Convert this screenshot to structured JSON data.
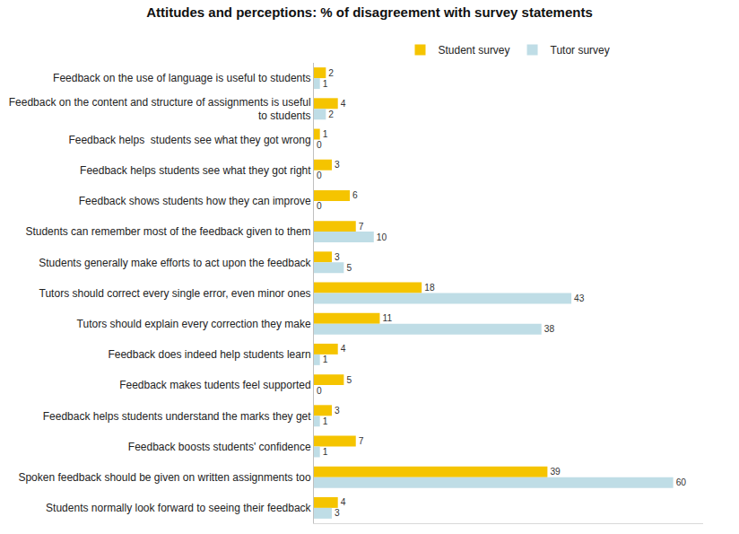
{
  "chart_data": {
    "type": "bar",
    "orientation": "horizontal",
    "title": "Attitudes and perceptions: % of disagreement with survey statements",
    "categories": [
      "Feedback on the use of language is useful to students",
      "Feedback on the content and structure of assignments is useful to students",
      "Feedback helps  students see what they got wrong",
      "Feedback helps students see what they got right",
      "Feedback shows students how they can improve",
      "Students can remember most of the feedback given to them",
      "Students generally make efforts to act upon the feedback",
      "Tutors should correct every single error, even minor ones",
      "Tutors should explain every correction they make",
      "Feedback does indeed help students learn",
      "Feedback makes tudents feel supported",
      "Feedback helps students understand the marks they get",
      "Feedback boosts students' confidence",
      "Spoken feedback should be given on written assignments too",
      "Students normally look forward to seeing their feedback"
    ],
    "series": [
      {
        "name": "Student survey",
        "color": "#F5C400",
        "values": [
          2,
          4,
          1,
          3,
          6,
          7,
          3,
          18,
          11,
          4,
          5,
          3,
          7,
          39,
          4
        ]
      },
      {
        "name": "Tutor survey",
        "color": "#BFDDE6",
        "values": [
          1,
          2,
          0,
          0,
          0,
          10,
          5,
          43,
          38,
          1,
          0,
          1,
          1,
          60,
          3
        ]
      }
    ],
    "xlim": [
      0,
      65
    ],
    "tick_labels": "y",
    "data_labels": true,
    "legend": "top",
    "grid": false
  }
}
